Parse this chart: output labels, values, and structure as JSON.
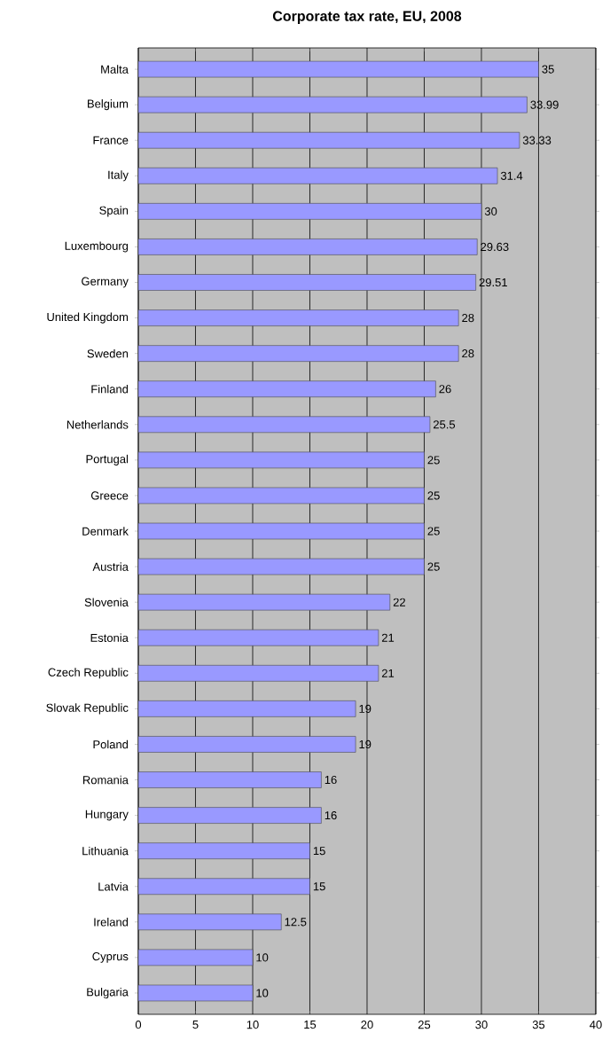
{
  "chart_data": {
    "type": "bar",
    "orientation": "horizontal",
    "title": "Corporate tax rate, EU, 2008",
    "categories": [
      "Malta",
      "Belgium",
      "France",
      "Italy",
      "Spain",
      "Luxembourg",
      "Germany",
      "United Kingdom",
      "Sweden",
      "Finland",
      "Netherlands",
      "Portugal",
      "Greece",
      "Denmark",
      "Austria",
      "Slovenia",
      "Estonia",
      "Czech Republic",
      "Slovak Republic",
      "Poland",
      "Romania",
      "Hungary",
      "Lithuania",
      "Latvia",
      "Ireland",
      "Cyprus",
      "Bulgaria"
    ],
    "values": [
      35,
      33.99,
      33.33,
      31.4,
      30,
      29.63,
      29.51,
      28,
      28,
      26,
      25.5,
      25,
      25,
      25,
      25,
      22,
      21,
      21,
      19,
      19,
      16,
      16,
      15,
      15,
      12.5,
      10,
      10
    ],
    "color": "#9999ff",
    "data_labels": true,
    "grid": "x",
    "xlim": [
      0,
      40
    ],
    "xticks": [
      0,
      5,
      10,
      15,
      20,
      25,
      30,
      35,
      40
    ]
  }
}
